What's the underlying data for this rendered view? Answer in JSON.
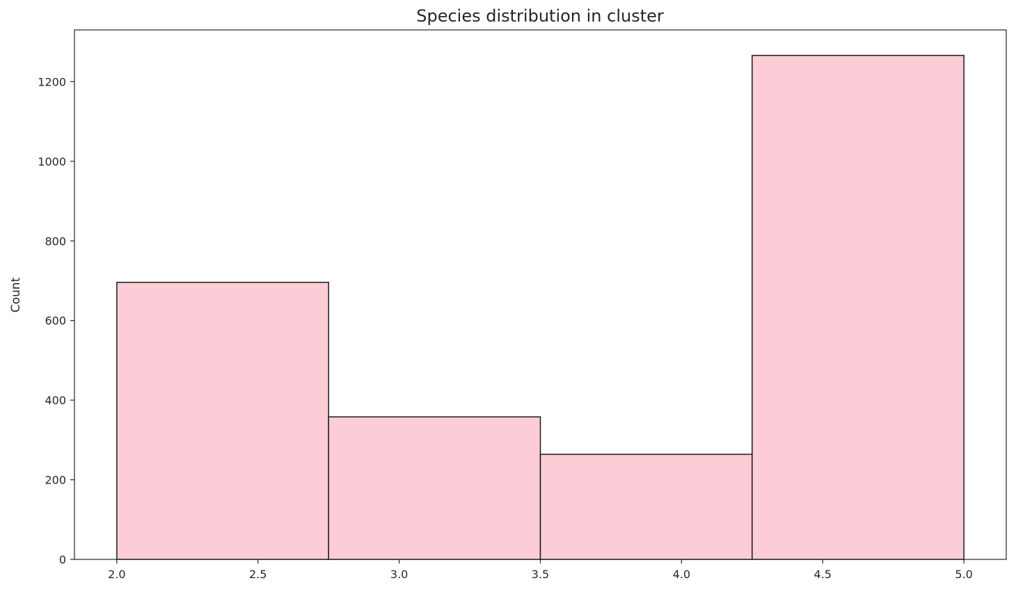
{
  "chart_data": {
    "type": "bar",
    "title": "Species distribution in cluster",
    "xlabel": "",
    "ylabel": "Count",
    "xlim": [
      1.85,
      5.15
    ],
    "ylim": [
      0,
      1330
    ],
    "grid": false,
    "bins": [
      {
        "x0": 2.0,
        "x1": 2.75,
        "value": 696
      },
      {
        "x0": 2.75,
        "x1": 3.5,
        "value": 358
      },
      {
        "x0": 3.5,
        "x1": 4.25,
        "value": 264
      },
      {
        "x0": 4.25,
        "x1": 5.0,
        "value": 1266
      }
    ],
    "x_ticks": [
      {
        "value": 2.0,
        "label": "2.0"
      },
      {
        "value": 2.5,
        "label": "2.5"
      },
      {
        "value": 3.0,
        "label": "3.0"
      },
      {
        "value": 3.5,
        "label": "3.5"
      },
      {
        "value": 4.0,
        "label": "4.0"
      },
      {
        "value": 4.5,
        "label": "4.5"
      },
      {
        "value": 5.0,
        "label": "5.0"
      }
    ],
    "y_ticks": [
      {
        "value": 0,
        "label": "0"
      },
      {
        "value": 200,
        "label": "200"
      },
      {
        "value": 400,
        "label": "400"
      },
      {
        "value": 600,
        "label": "600"
      },
      {
        "value": 800,
        "label": "800"
      },
      {
        "value": 1000,
        "label": "1000"
      },
      {
        "value": 1200,
        "label": "1200"
      }
    ],
    "colors": {
      "bar_fill": "#fccdd6",
      "bar_edge": "#1a1a1a",
      "axis": "#262626"
    }
  }
}
